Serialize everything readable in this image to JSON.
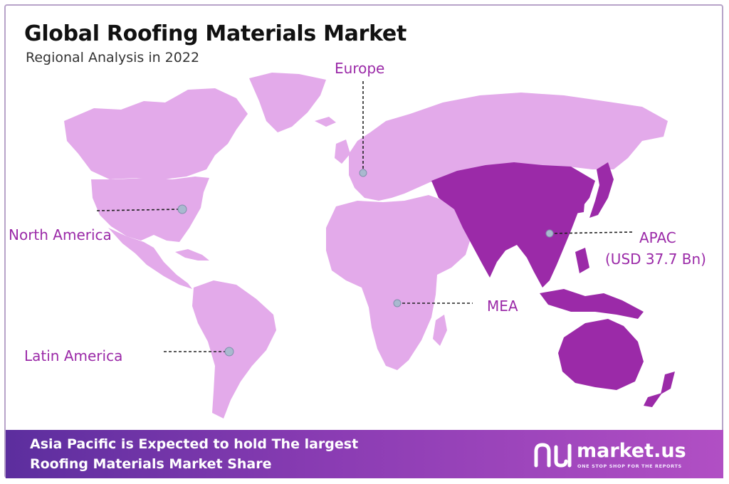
{
  "title": "Global Roofing Materials Market",
  "subtitle": "Regional Analysis in 2022",
  "regions": {
    "europe": {
      "label": "Europe",
      "value": ""
    },
    "north_america": {
      "label": "North America",
      "value": ""
    },
    "apac": {
      "label": "APAC",
      "value": "(USD 37.7 Bn)"
    },
    "mea": {
      "label": "MEA",
      "value": ""
    },
    "latin_america": {
      "label": "Latin America",
      "value": ""
    }
  },
  "highlight_region": "apac",
  "banner": {
    "line1": "Asia Pacific is Expected to hold The largest",
    "line2": "Roofing Materials Market Share"
  },
  "brand": {
    "name": "market.us",
    "tagline": "ONE STOP SHOP FOR THE REPORTS"
  },
  "colors": {
    "land": "#e3aaea",
    "highlight": "#9b2aa8",
    "label": "#9b2aa8",
    "marker": "#a9b9cf",
    "banner_start": "#5c2e9e",
    "banner_end": "#b14fc4"
  }
}
